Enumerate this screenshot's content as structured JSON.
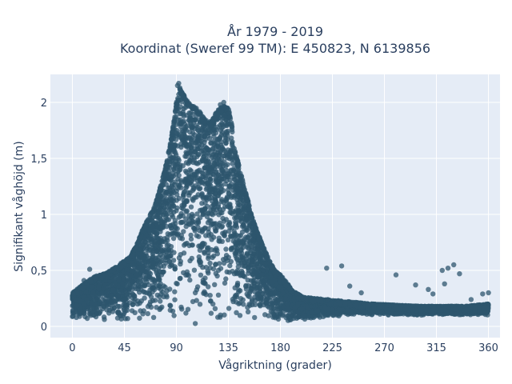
{
  "chart_data": {
    "type": "scatter",
    "title_line1": "År 1979 - 2019",
    "title_line2": "Koordinat (Sweref 99 TM): E 450823, N 6139856",
    "xlabel": "Vågriktning (grader)",
    "ylabel": "Signifikant våghöjd (m)",
    "xlim": [
      -19,
      370
    ],
    "ylim": [
      -0.1,
      2.25
    ],
    "x_ticks": [
      {
        "value": 0,
        "label": "0"
      },
      {
        "value": 45,
        "label": "45"
      },
      {
        "value": 90,
        "label": "90"
      },
      {
        "value": 135,
        "label": "135"
      },
      {
        "value": 180,
        "label": "180"
      },
      {
        "value": 225,
        "label": "225"
      },
      {
        "value": 270,
        "label": "270"
      },
      {
        "value": 315,
        "label": "315"
      },
      {
        "value": 360,
        "label": "360"
      }
    ],
    "y_ticks": [
      {
        "value": 0,
        "label": "0"
      },
      {
        "value": 0.5,
        "label": "0,5"
      },
      {
        "value": 1,
        "label": "1"
      },
      {
        "value": 1.5,
        "label": "1,5"
      },
      {
        "value": 2,
        "label": "2"
      }
    ],
    "grid": true,
    "legend": "none",
    "colors": {
      "marker": "#2e566e",
      "plot_bg": "#e5ecf6",
      "grid": "#ffffff",
      "text": "#2a3f5f"
    },
    "envelope": [
      [
        0,
        0.05,
        0.3
      ],
      [
        10,
        0.05,
        0.38
      ],
      [
        20,
        0.05,
        0.45
      ],
      [
        30,
        0.05,
        0.48
      ],
      [
        40,
        0.04,
        0.55
      ],
      [
        50,
        0.03,
        0.62
      ],
      [
        55,
        0.03,
        0.72
      ],
      [
        60,
        0.03,
        0.85
      ],
      [
        65,
        0.02,
        0.95
      ],
      [
        70,
        0.02,
        1.05
      ],
      [
        75,
        0.02,
        1.2
      ],
      [
        80,
        0.02,
        1.4
      ],
      [
        85,
        0.02,
        1.65
      ],
      [
        88,
        0.02,
        1.85
      ],
      [
        90,
        0.02,
        2.0
      ],
      [
        93,
        0.02,
        2.12
      ],
      [
        96,
        0.02,
        2.08
      ],
      [
        100,
        0.02,
        2.0
      ],
      [
        105,
        0.02,
        1.97
      ],
      [
        110,
        0.02,
        1.92
      ],
      [
        115,
        0.02,
        1.84
      ],
      [
        120,
        0.02,
        1.83
      ],
      [
        125,
        0.02,
        1.92
      ],
      [
        130,
        0.02,
        1.97
      ],
      [
        135,
        0.02,
        1.95
      ],
      [
        138,
        0.02,
        1.8
      ],
      [
        140,
        0.02,
        1.6
      ],
      [
        145,
        0.02,
        1.4
      ],
      [
        150,
        0.02,
        1.2
      ],
      [
        155,
        0.02,
        1.0
      ],
      [
        160,
        0.02,
        0.85
      ],
      [
        165,
        0.02,
        0.72
      ],
      [
        170,
        0.02,
        0.6
      ],
      [
        175,
        0.02,
        0.5
      ],
      [
        180,
        0.02,
        0.46
      ],
      [
        185,
        0.02,
        0.4
      ],
      [
        190,
        0.03,
        0.32
      ],
      [
        200,
        0.05,
        0.26
      ],
      [
        220,
        0.08,
        0.24
      ],
      [
        240,
        0.1,
        0.22
      ],
      [
        260,
        0.1,
        0.2
      ],
      [
        280,
        0.1,
        0.19
      ],
      [
        300,
        0.1,
        0.18
      ],
      [
        320,
        0.1,
        0.18
      ],
      [
        340,
        0.1,
        0.18
      ],
      [
        360,
        0.1,
        0.2
      ]
    ],
    "outliers": [
      [
        15,
        0.51
      ],
      [
        10,
        0.41
      ],
      [
        25,
        0.43
      ],
      [
        220,
        0.52
      ],
      [
        233,
        0.54
      ],
      [
        240,
        0.36
      ],
      [
        250,
        0.3
      ],
      [
        280,
        0.46
      ],
      [
        297,
        0.37
      ],
      [
        308,
        0.33
      ],
      [
        312,
        0.29
      ],
      [
        320,
        0.5
      ],
      [
        325,
        0.52
      ],
      [
        330,
        0.55
      ],
      [
        335,
        0.47
      ],
      [
        322,
        0.38
      ],
      [
        355,
        0.29
      ],
      [
        360,
        0.3
      ],
      [
        345,
        0.24
      ]
    ],
    "peak_points": [
      [
        92,
        2.17
      ],
      [
        91,
        2.15
      ],
      [
        93,
        2.13
      ],
      [
        131,
        2.0
      ],
      [
        128,
        1.98
      ],
      [
        95,
        2.05
      ]
    ]
  }
}
